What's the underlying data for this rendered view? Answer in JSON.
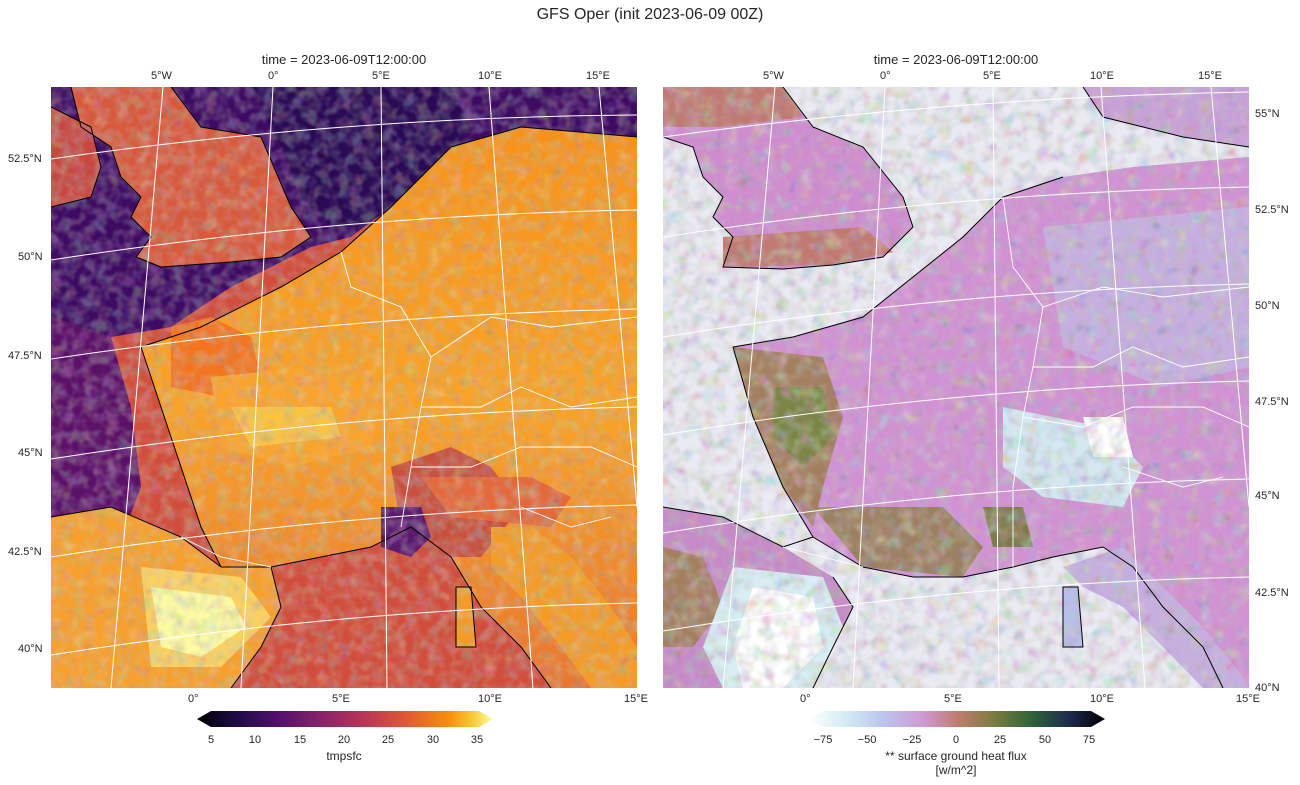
{
  "suptitle": "GFS Oper (init 2023-06-09 00Z)",
  "panels": [
    {
      "id": "left",
      "title": "time = 2023-06-09T12:00:00",
      "variable": "tmpsfc",
      "colormap": "inferno",
      "top_lon_ticks": [
        "5°W",
        "0°",
        "5°E",
        "10°E",
        "15°E"
      ],
      "bottom_lon_ticks": [
        "0°",
        "5°E",
        "10°E",
        "15°E"
      ],
      "lat_ticks": [
        "52.5°N",
        "50°N",
        "47.5°N",
        "45°N",
        "42.5°N",
        "40°N"
      ],
      "colorbar": {
        "label": "tmpsfc",
        "ticks": [
          "5",
          "10",
          "15",
          "20",
          "25",
          "30",
          "35"
        ],
        "min": 5,
        "max": 35,
        "extend": "both"
      }
    },
    {
      "id": "right",
      "title": "time = 2023-06-09T12:00:00",
      "variable": "** surface ground heat flux [w/m^2]",
      "colormap": "cubehelix_r",
      "top_lon_ticks": [
        "5°W",
        "0°",
        "5°E",
        "10°E",
        "15°E"
      ],
      "bottom_lon_ticks": [
        "0°",
        "5°E",
        "10°E",
        "15°E"
      ],
      "lat_ticks": [
        "55°N",
        "52.5°N",
        "50°N",
        "47.5°N",
        "45°N",
        "42.5°N",
        "40°N"
      ],
      "colorbar": {
        "label_line1": "** surface ground heat flux",
        "label_line2": "[w/m^2]",
        "ticks": [
          "−75",
          "−50",
          "−25",
          "0",
          "25",
          "50",
          "75"
        ],
        "min": -75,
        "max": 75,
        "extend": "both"
      }
    }
  ],
  "colors": {
    "ocean_bg": "#eaeaf2",
    "coast": "#000000",
    "grid": "#ffffff"
  }
}
